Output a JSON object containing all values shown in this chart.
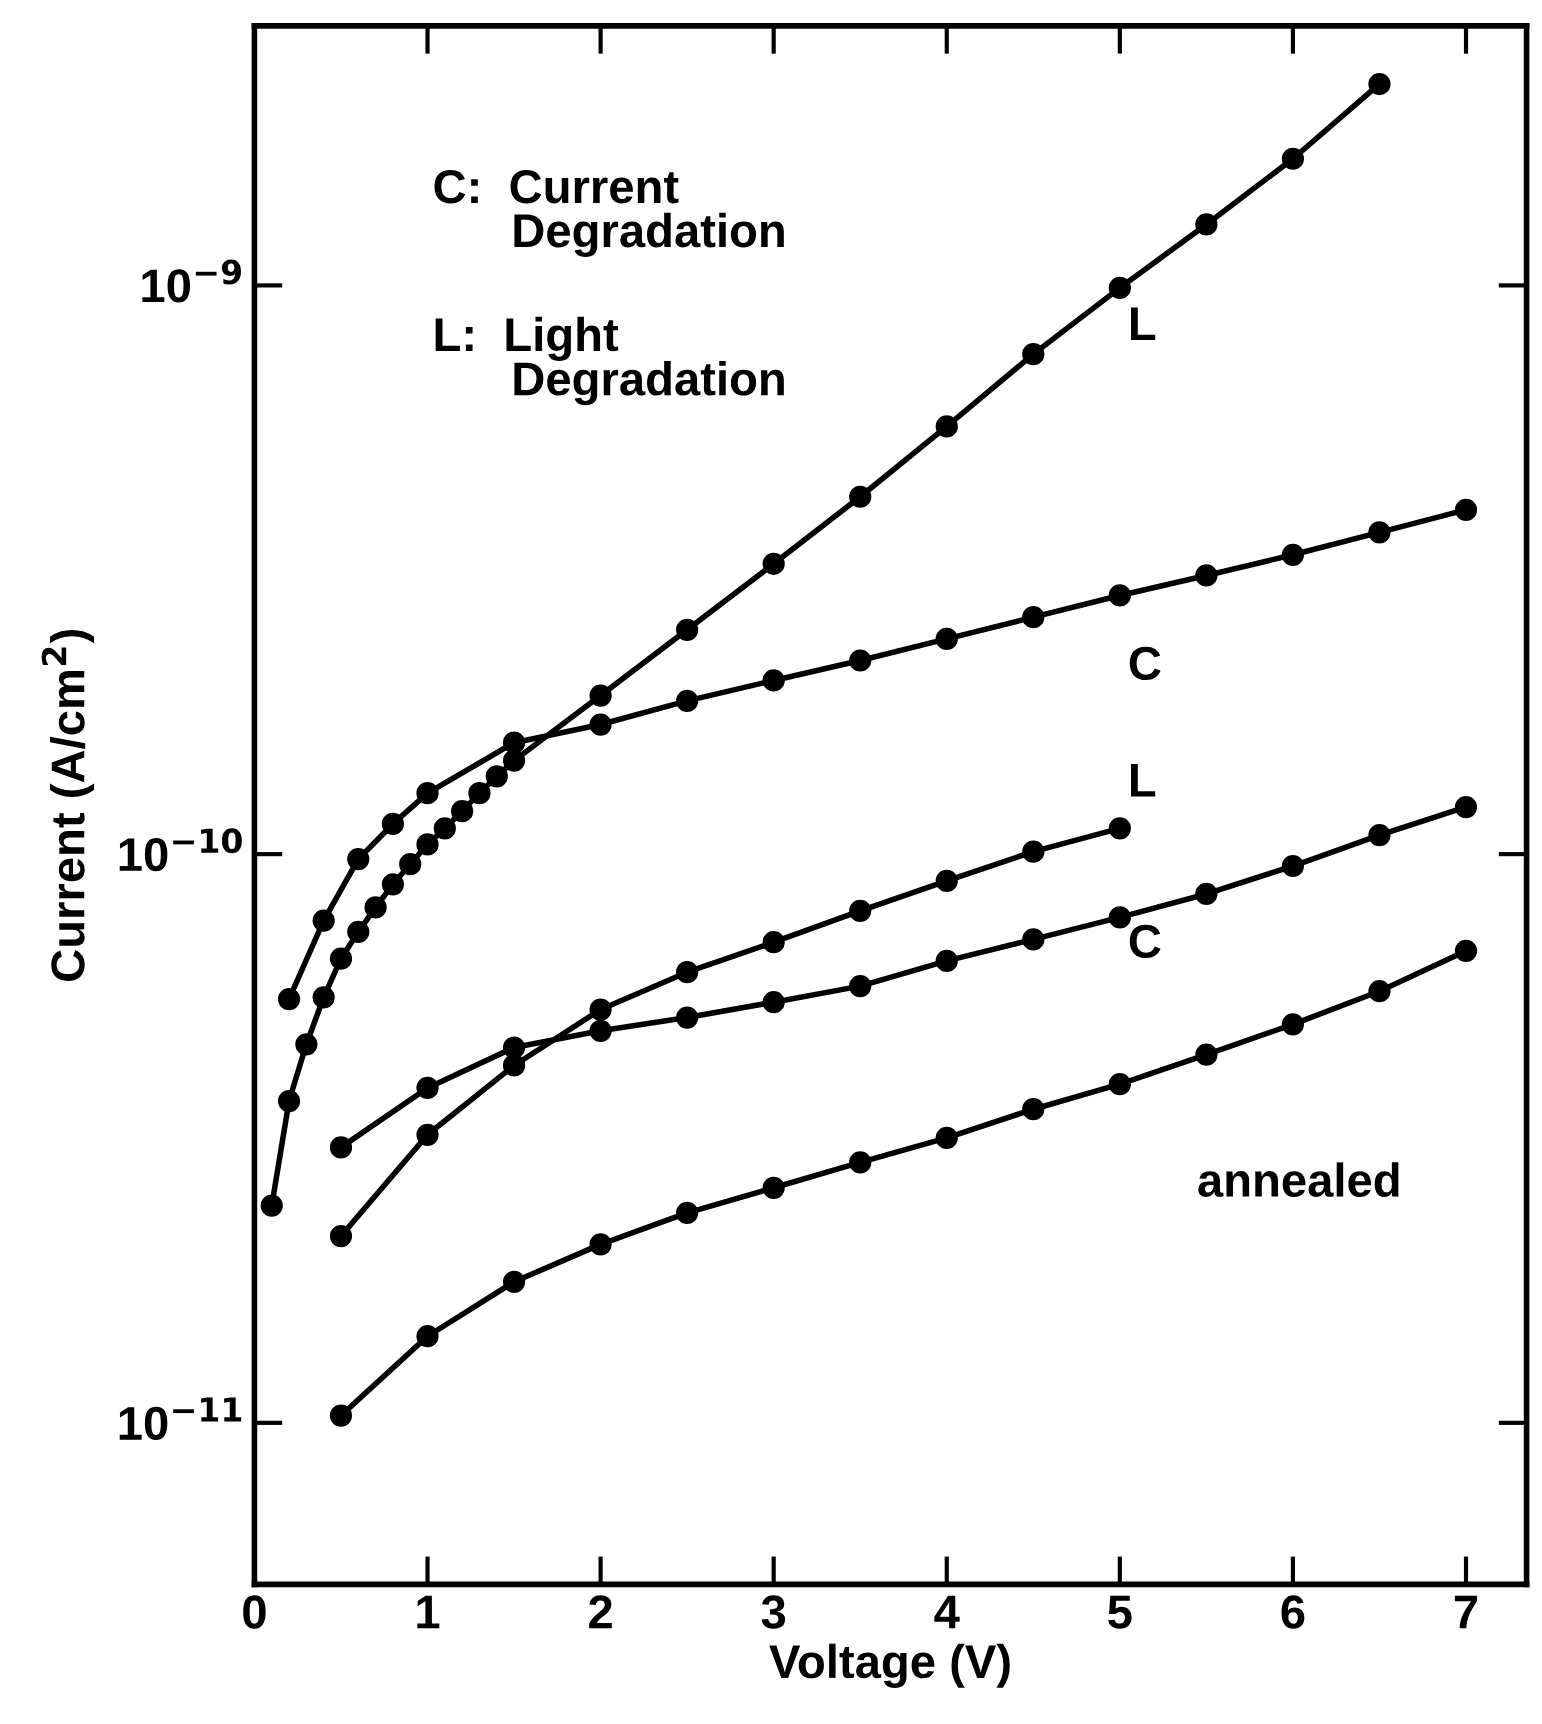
{
  "chart_data": {
    "type": "line",
    "xlabel": "Voltage (V)",
    "ylabel": "Current (A/cm$^{2}$)",
    "log": "y",
    "marker": "circle",
    "line_style": "solid",
    "grid": false,
    "legend": false,
    "xlim": [
      0,
      7.35
    ],
    "xticks": [
      0,
      1,
      2,
      3,
      4,
      5,
      6,
      7
    ],
    "ylim": [
      5.2e-12,
      2.86e-09
    ],
    "yticks": [
      {
        "value": 1e-11,
        "label": "10$^{−11}$"
      },
      {
        "value": 1e-10,
        "label": "10$^{−10}$"
      },
      {
        "value": 1e-09,
        "label": "10$^{−9}$"
      }
    ],
    "series": [
      {
        "name": "L",
        "color": "#000000",
        "x": [
          0.1,
          0.2,
          0.3,
          0.4,
          0.5,
          0.6,
          0.7,
          0.8,
          0.9,
          1.0,
          1.1,
          1.2,
          1.3,
          1.4,
          1.5,
          2,
          2.5,
          3,
          3.5,
          4,
          4.5,
          5,
          5.5,
          6,
          6.5
        ],
        "values": [
          2.41e-11,
          3.68e-11,
          4.63e-11,
          5.6e-11,
          6.55e-11,
          7.3e-11,
          8.06e-11,
          8.85e-11,
          9.6e-11,
          1.04e-10,
          1.11e-10,
          1.19e-10,
          1.28e-10,
          1.37e-10,
          1.46e-10,
          1.9e-10,
          2.48e-10,
          3.24e-10,
          4.25e-10,
          5.65e-10,
          7.57e-10,
          9.9e-10,
          1.28e-09,
          1.67e-09,
          2.26e-09
        ]
      },
      {
        "name": "C",
        "color": "#000000",
        "x": [
          0.2,
          0.4,
          0.6,
          0.8,
          1.0,
          1.5,
          2,
          2.5,
          3,
          3.5,
          4,
          4.5,
          5,
          5.5,
          6,
          6.5,
          7
        ],
        "values": [
          5.56e-11,
          7.64e-11,
          9.8e-11,
          1.13e-10,
          1.28e-10,
          1.57e-10,
          1.69e-10,
          1.86e-10,
          2.02e-10,
          2.19e-10,
          2.39e-10,
          2.61e-10,
          2.85e-10,
          3.09e-10,
          3.36e-10,
          3.68e-10,
          4.03e-10
        ]
      },
      {
        "name": "L",
        "color": "#000000",
        "x": [
          0.5,
          1,
          1.5,
          2,
          2.5,
          3,
          3.5,
          4,
          4.5,
          5
        ],
        "values": [
          2.13e-11,
          3.21e-11,
          4.25e-11,
          5.33e-11,
          6.2e-11,
          7e-11,
          7.95e-11,
          8.97e-11,
          1.01e-10,
          1.11e-10
        ]
      },
      {
        "name": "C",
        "color": "#000000",
        "x": [
          0.5,
          1,
          1.5,
          2,
          2.5,
          3,
          3.5,
          4,
          4.5,
          5,
          5.5,
          6,
          6.5,
          7
        ],
        "values": [
          3.05e-11,
          3.88e-11,
          4.57e-11,
          4.89e-11,
          5.16e-11,
          5.49e-11,
          5.86e-11,
          6.49e-11,
          7.08e-11,
          7.74e-11,
          8.51e-11,
          9.53e-11,
          1.08e-10,
          1.21e-10
        ]
      },
      {
        "name": "annealed",
        "color": "#000000",
        "x": [
          0.5,
          1,
          1.5,
          2,
          2.5,
          3,
          3.5,
          4,
          4.5,
          5,
          5.5,
          6,
          6.5,
          7
        ],
        "values": [
          1.03e-11,
          1.42e-11,
          1.77e-11,
          2.06e-11,
          2.34e-11,
          2.59e-11,
          2.87e-11,
          3.17e-11,
          3.56e-11,
          3.94e-11,
          4.44e-11,
          5.02e-11,
          5.74e-11,
          6.76e-11
        ]
      }
    ],
    "annotations": [
      "C:  Current\n      Degradation",
      "L:  Light\n      Degradation"
    ]
  }
}
